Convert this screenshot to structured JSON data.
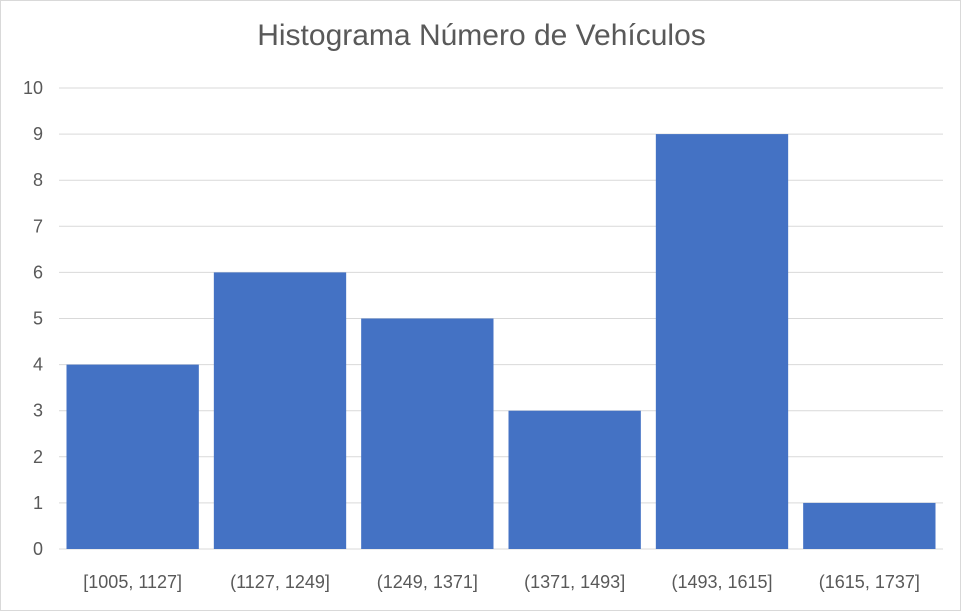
{
  "chart_data": {
    "type": "bar",
    "title": "Histograma Número de Vehículos",
    "xlabel": "",
    "ylabel": "",
    "categories": [
      "[1005, 1127]",
      "(1127, 1249]",
      "(1249, 1371]",
      "(1371, 1493]",
      "(1493, 1615]",
      "(1615, 1737]"
    ],
    "values": [
      4,
      6,
      5,
      3,
      9,
      1
    ],
    "ylim": [
      0,
      10
    ],
    "yticks": [
      0,
      1,
      2,
      3,
      4,
      5,
      6,
      7,
      8,
      9,
      10
    ],
    "grid": true,
    "legend": "none",
    "bar_color": "#4472c4",
    "grid_color": "#d9d9d9"
  }
}
